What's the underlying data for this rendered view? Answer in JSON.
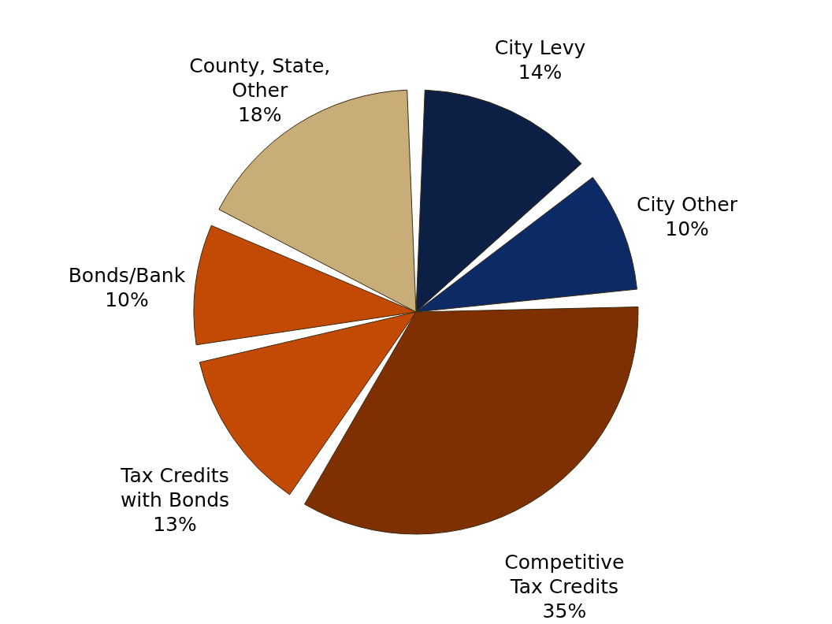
{
  "chart_data": {
    "type": "pie",
    "categories": [
      "City Levy",
      "City Other",
      "Competitive Tax Credits",
      "Tax Credits with Bonds",
      "Bonds/Bank",
      "County, State, Other"
    ],
    "values": [
      14,
      10,
      35,
      13,
      10,
      18
    ],
    "value_labels": [
      "14%",
      "10%",
      "35%",
      "13%",
      "10%",
      "18%"
    ],
    "colors": [
      "#0c1f45",
      "#0c2a66",
      "#7f3003",
      "#c24a05",
      "#c24a05",
      "#c9ad79"
    ]
  }
}
